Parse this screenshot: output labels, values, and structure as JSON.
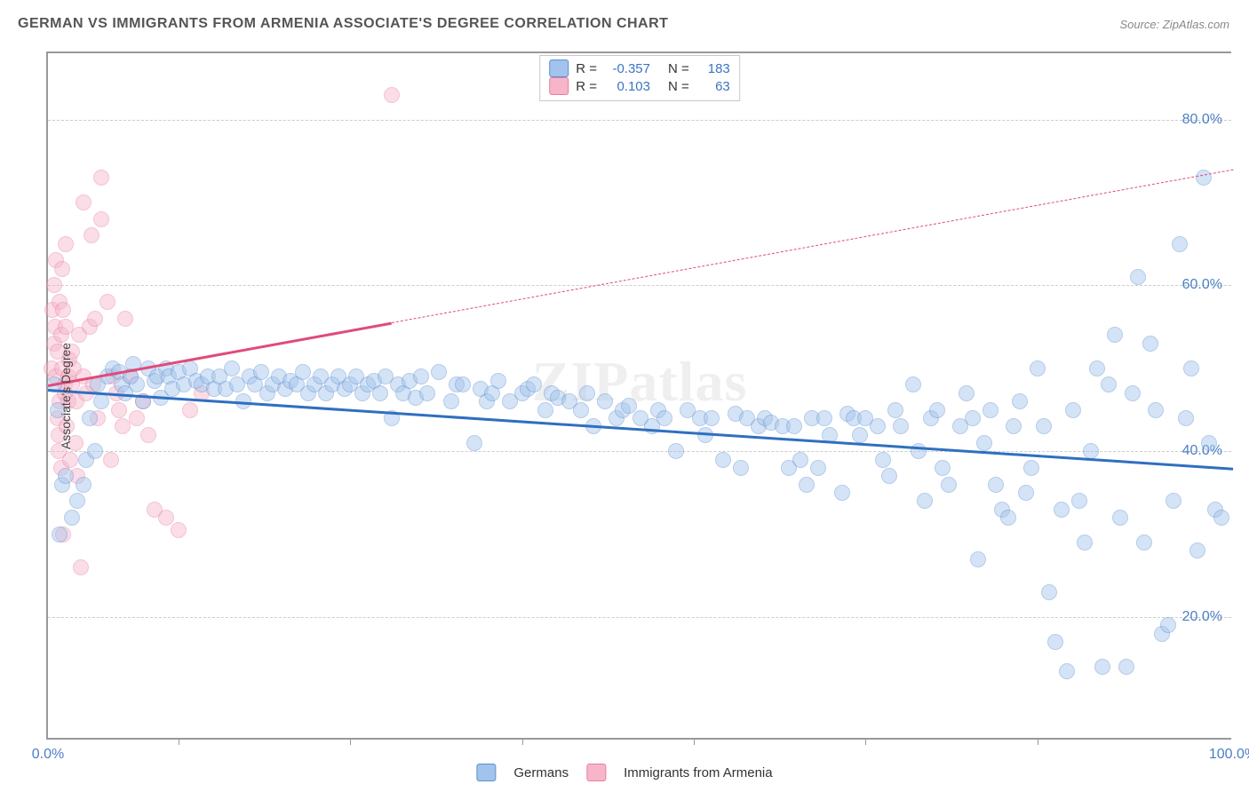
{
  "title": "GERMAN VS IMMIGRANTS FROM ARMENIA ASSOCIATE'S DEGREE CORRELATION CHART",
  "source": "Source: ZipAtlas.com",
  "ylabel": "Associate's Degree",
  "watermark": "ZIPatlas",
  "chart": {
    "type": "scatter",
    "background_color": "#ffffff",
    "grid_color": "#cccccc",
    "axis_color": "#999999",
    "xlim": [
      0,
      100
    ],
    "ylim": [
      5,
      88
    ],
    "ytick_values": [
      20,
      40,
      60,
      80
    ],
    "ytick_labels": [
      "20.0%",
      "40.0%",
      "60.0%",
      "80.0%"
    ],
    "xtick_values": [
      0,
      100
    ],
    "xtick_labels": [
      "0.0%",
      "100.0%"
    ],
    "xtick_marks": [
      11,
      25.5,
      40,
      54.5,
      69,
      83.5
    ],
    "tick_color": "#4a7fc4",
    "tick_fontsize": 16,
    "label_fontsize": 14,
    "title_fontsize": 16,
    "marker_radius": 9,
    "marker_opacity": 0.45
  },
  "series": {
    "germans": {
      "label": "Germans",
      "fill_color": "#a2c3ec",
      "stroke_color": "#5b8fd0",
      "R_label": "R =",
      "R_value": "-0.357",
      "N_label": "N =",
      "N_value": "183",
      "trend": {
        "x1": 0,
        "y1": 47.5,
        "x2": 100,
        "y2": 38,
        "color": "#2f6fc0",
        "width": 3,
        "solid_until_x": 100
      },
      "points": [
        [
          0.5,
          48
        ],
        [
          0.8,
          45
        ],
        [
          1,
          30
        ],
        [
          1.2,
          36
        ],
        [
          1.5,
          37
        ],
        [
          2,
          32
        ],
        [
          2.5,
          34
        ],
        [
          3,
          36
        ],
        [
          3.2,
          39
        ],
        [
          3.5,
          44
        ],
        [
          4,
          40
        ],
        [
          4.2,
          48
        ],
        [
          4.5,
          46
        ],
        [
          5,
          49
        ],
        [
          5.5,
          50
        ],
        [
          6,
          49.5
        ],
        [
          6.2,
          48
        ],
        [
          6.5,
          47
        ],
        [
          7,
          49
        ],
        [
          7.2,
          50.5
        ],
        [
          7.5,
          48
        ],
        [
          8,
          46
        ],
        [
          8.5,
          50
        ],
        [
          9,
          48.5
        ],
        [
          9.2,
          49
        ],
        [
          9.5,
          46.5
        ],
        [
          10,
          50
        ],
        [
          10.2,
          49
        ],
        [
          10.5,
          47.5
        ],
        [
          11,
          49.5
        ],
        [
          11.5,
          48
        ],
        [
          12,
          50
        ],
        [
          12.5,
          48.5
        ],
        [
          13,
          48
        ],
        [
          13.5,
          49
        ],
        [
          14,
          47.5
        ],
        [
          14.5,
          49
        ],
        [
          15,
          47.5
        ],
        [
          15.5,
          50
        ],
        [
          16,
          48
        ],
        [
          16.5,
          46
        ],
        [
          17,
          49
        ],
        [
          17.5,
          48
        ],
        [
          18,
          49.5
        ],
        [
          18.5,
          47
        ],
        [
          19,
          48
        ],
        [
          19.5,
          49
        ],
        [
          20,
          47.5
        ],
        [
          20.5,
          48.5
        ],
        [
          21,
          48
        ],
        [
          21.5,
          49.5
        ],
        [
          22,
          47
        ],
        [
          22.5,
          48
        ],
        [
          23,
          49
        ],
        [
          23.5,
          47
        ],
        [
          24,
          48
        ],
        [
          24.5,
          49
        ],
        [
          25,
          47.5
        ],
        [
          25.5,
          48
        ],
        [
          26,
          49
        ],
        [
          26.5,
          47
        ],
        [
          27,
          48
        ],
        [
          27.5,
          48.5
        ],
        [
          28,
          47
        ],
        [
          28.5,
          49
        ],
        [
          29,
          44
        ],
        [
          29.5,
          48
        ],
        [
          30,
          47
        ],
        [
          30.5,
          48.5
        ],
        [
          31,
          46.5
        ],
        [
          31.5,
          49
        ],
        [
          32,
          47
        ],
        [
          33,
          49.5
        ],
        [
          34,
          46
        ],
        [
          34.5,
          48
        ],
        [
          35,
          48
        ],
        [
          36,
          41
        ],
        [
          36.5,
          47.5
        ],
        [
          37,
          46
        ],
        [
          37.5,
          47
        ],
        [
          38,
          48.5
        ],
        [
          39,
          46
        ],
        [
          40,
          47
        ],
        [
          40.5,
          47.5
        ],
        [
          41,
          48
        ],
        [
          42,
          45
        ],
        [
          42.5,
          47
        ],
        [
          43,
          46.5
        ],
        [
          44,
          46
        ],
        [
          45,
          45
        ],
        [
          45.5,
          47
        ],
        [
          46,
          43
        ],
        [
          47,
          46
        ],
        [
          48,
          44
        ],
        [
          48.5,
          45
        ],
        [
          49,
          45.5
        ],
        [
          50,
          44
        ],
        [
          51,
          43
        ],
        [
          51.5,
          45
        ],
        [
          52,
          44
        ],
        [
          53,
          40
        ],
        [
          54,
          45
        ],
        [
          55,
          44
        ],
        [
          55.5,
          42
        ],
        [
          56,
          44
        ],
        [
          57,
          39
        ],
        [
          58,
          44.5
        ],
        [
          58.5,
          38
        ],
        [
          59,
          44
        ],
        [
          60,
          43
        ],
        [
          60.5,
          44
        ],
        [
          61,
          43.5
        ],
        [
          62,
          43
        ],
        [
          62.5,
          38
        ],
        [
          63,
          43
        ],
        [
          63.5,
          39
        ],
        [
          64,
          36
        ],
        [
          64.5,
          44
        ],
        [
          65,
          38
        ],
        [
          65.5,
          44
        ],
        [
          66,
          42
        ],
        [
          67,
          35
        ],
        [
          67.5,
          44.5
        ],
        [
          68,
          44
        ],
        [
          68.5,
          42
        ],
        [
          69,
          44
        ],
        [
          70,
          43
        ],
        [
          70.5,
          39
        ],
        [
          71,
          37
        ],
        [
          71.5,
          45
        ],
        [
          72,
          43
        ],
        [
          73,
          48
        ],
        [
          73.5,
          40
        ],
        [
          74,
          34
        ],
        [
          74.5,
          44
        ],
        [
          75,
          45
        ],
        [
          75.5,
          38
        ],
        [
          76,
          36
        ],
        [
          77,
          43
        ],
        [
          77.5,
          47
        ],
        [
          78,
          44
        ],
        [
          78.5,
          27
        ],
        [
          79,
          41
        ],
        [
          79.5,
          45
        ],
        [
          80,
          36
        ],
        [
          80.5,
          33
        ],
        [
          81,
          32
        ],
        [
          81.5,
          43
        ],
        [
          82,
          46
        ],
        [
          82.5,
          35
        ],
        [
          83,
          38
        ],
        [
          83.5,
          50
        ],
        [
          84,
          43
        ],
        [
          84.5,
          23
        ],
        [
          85,
          17
        ],
        [
          85.5,
          33
        ],
        [
          86,
          13.5
        ],
        [
          86.5,
          45
        ],
        [
          87,
          34
        ],
        [
          87.5,
          29
        ],
        [
          88,
          40
        ],
        [
          88.5,
          50
        ],
        [
          89,
          14
        ],
        [
          89.5,
          48
        ],
        [
          90,
          54
        ],
        [
          90.5,
          32
        ],
        [
          91,
          14
        ],
        [
          91.5,
          47
        ],
        [
          92,
          61
        ],
        [
          92.5,
          29
        ],
        [
          93,
          53
        ],
        [
          93.5,
          45
        ],
        [
          94,
          18
        ],
        [
          94.5,
          19
        ],
        [
          95,
          34
        ],
        [
          95.5,
          65
        ],
        [
          96,
          44
        ],
        [
          96.5,
          50
        ],
        [
          97,
          28
        ],
        [
          97.5,
          73
        ],
        [
          98,
          41
        ],
        [
          98.5,
          33
        ],
        [
          99,
          32
        ]
      ]
    },
    "armenia": {
      "label": "Immigrants from Armenia",
      "fill_color": "#f6b5c9",
      "stroke_color": "#e77ea0",
      "R_label": "R =",
      "R_value": "0.103",
      "N_label": "N =",
      "N_value": "63",
      "trend": {
        "x1": 0,
        "y1": 48,
        "x2": 100,
        "y2": 74,
        "color": "#e04b7a",
        "width": 2.5,
        "solid_until_x": 29
      },
      "points": [
        [
          0.3,
          50
        ],
        [
          0.4,
          57
        ],
        [
          0.5,
          53
        ],
        [
          0.5,
          60
        ],
        [
          0.6,
          55
        ],
        [
          0.7,
          49
        ],
        [
          0.7,
          63
        ],
        [
          0.8,
          44
        ],
        [
          0.8,
          52
        ],
        [
          0.9,
          42
        ],
        [
          0.9,
          40
        ],
        [
          1,
          58
        ],
        [
          1,
          46
        ],
        [
          1.1,
          54
        ],
        [
          1.1,
          38
        ],
        [
          1.2,
          62
        ],
        [
          1.2,
          50
        ],
        [
          1.3,
          57
        ],
        [
          1.3,
          30
        ],
        [
          1.4,
          48
        ],
        [
          1.4,
          47
        ],
        [
          1.5,
          55
        ],
        [
          1.5,
          65
        ],
        [
          1.6,
          43
        ],
        [
          1.7,
          49
        ],
        [
          1.7,
          46
        ],
        [
          1.8,
          51
        ],
        [
          1.9,
          39
        ],
        [
          2,
          52
        ],
        [
          2,
          48
        ],
        [
          2.2,
          50
        ],
        [
          2.3,
          41
        ],
        [
          2.4,
          46
        ],
        [
          2.5,
          37
        ],
        [
          2.6,
          54
        ],
        [
          2.8,
          26
        ],
        [
          3,
          70
        ],
        [
          3,
          49
        ],
        [
          3.2,
          47
        ],
        [
          3.5,
          55
        ],
        [
          3.7,
          66
        ],
        [
          3.8,
          48
        ],
        [
          4,
          56
        ],
        [
          4.2,
          44
        ],
        [
          4.5,
          68
        ],
        [
          4.5,
          73
        ],
        [
          5,
          58
        ],
        [
          5.3,
          39
        ],
        [
          5.5,
          49
        ],
        [
          5.8,
          47
        ],
        [
          6,
          45
        ],
        [
          6.3,
          43
        ],
        [
          6.5,
          56
        ],
        [
          7,
          49
        ],
        [
          7.5,
          44
        ],
        [
          8,
          46
        ],
        [
          8.5,
          42
        ],
        [
          9,
          33
        ],
        [
          10,
          32
        ],
        [
          11,
          30.5
        ],
        [
          12,
          45
        ],
        [
          13,
          47
        ],
        [
          29,
          83
        ]
      ]
    }
  },
  "legend": {
    "swatch_border_radius": 3
  }
}
